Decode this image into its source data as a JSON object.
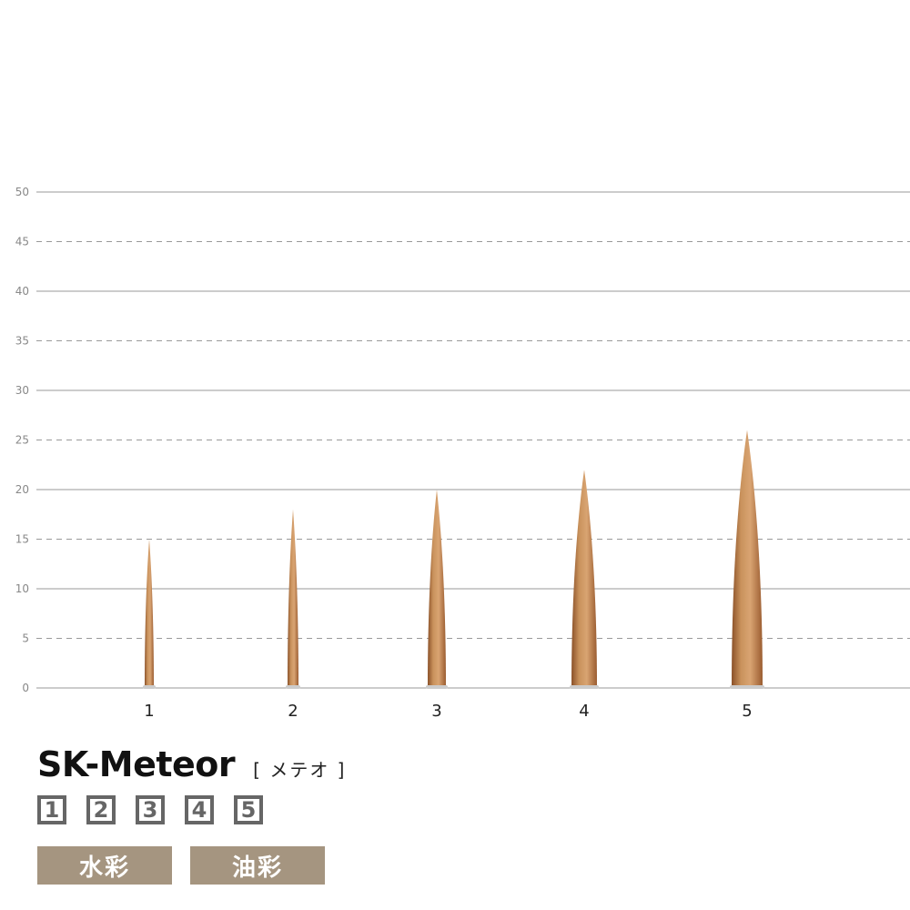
{
  "chart_data": {
    "type": "bar",
    "categories": [
      "1",
      "2",
      "3",
      "4",
      "5"
    ],
    "values": [
      15,
      18,
      20,
      22,
      26
    ],
    "ylim": [
      0,
      50
    ],
    "yticks": [
      0,
      5,
      10,
      15,
      20,
      25,
      30,
      35,
      40,
      45,
      50
    ],
    "grid": true,
    "colors": {
      "bristle": "#c58a55",
      "bristle_dark": "#8a5028",
      "grid": "#999999",
      "tick_label": "#888888"
    }
  },
  "product": {
    "name": "SK-Meteor",
    "reading": "[ メテオ ]",
    "sizes": [
      "1",
      "2",
      "3",
      "4",
      "5"
    ],
    "uses": [
      "水彩",
      "油彩"
    ],
    "use_color": "#a59580"
  }
}
